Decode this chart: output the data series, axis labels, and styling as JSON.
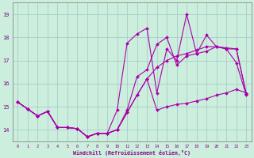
{
  "xlabel": "Windchill (Refroidissement éolien,°C)",
  "background_color": "#cceedd",
  "grid_color": "#aacccc",
  "line_color": "#aa00aa",
  "x": [
    0,
    1,
    2,
    3,
    4,
    5,
    6,
    7,
    8,
    9,
    10,
    11,
    12,
    13,
    14,
    15,
    16,
    17,
    18,
    19,
    20,
    21,
    22,
    23
  ],
  "series1": [
    15.2,
    14.9,
    14.6,
    14.8,
    14.1,
    14.1,
    14.05,
    13.7,
    13.85,
    13.85,
    14.0,
    14.75,
    15.5,
    16.2,
    14.85,
    15.0,
    15.1,
    15.15,
    15.25,
    15.35,
    15.5,
    15.6,
    15.75,
    15.6
  ],
  "series2": [
    15.2,
    14.9,
    14.6,
    14.8,
    14.1,
    14.1,
    14.05,
    13.7,
    13.85,
    13.85,
    14.85,
    17.75,
    18.15,
    18.4,
    15.6,
    17.5,
    17.0,
    19.0,
    17.3,
    18.1,
    17.6,
    17.5,
    16.9,
    15.5
  ],
  "series3": [
    15.2,
    14.9,
    14.6,
    14.8,
    14.1,
    14.1,
    14.05,
    13.7,
    13.85,
    13.85,
    14.0,
    14.85,
    16.3,
    16.6,
    17.7,
    18.0,
    16.8,
    17.2,
    17.3,
    17.4,
    17.6,
    17.5,
    17.5,
    15.55
  ],
  "series4": [
    15.2,
    14.9,
    14.6,
    14.8,
    14.1,
    14.1,
    14.05,
    13.7,
    13.85,
    13.85,
    14.0,
    14.75,
    15.5,
    16.2,
    16.7,
    17.0,
    17.2,
    17.3,
    17.45,
    17.6,
    17.6,
    17.55,
    17.5,
    15.55
  ],
  "ylim": [
    13.5,
    19.5
  ],
  "yticks": [
    14,
    15,
    16,
    17,
    18,
    19
  ],
  "xlim": [
    -0.5,
    23.5
  ],
  "xticks": [
    0,
    1,
    2,
    3,
    4,
    5,
    6,
    7,
    8,
    9,
    10,
    11,
    12,
    13,
    14,
    15,
    16,
    17,
    18,
    19,
    20,
    21,
    22,
    23
  ]
}
